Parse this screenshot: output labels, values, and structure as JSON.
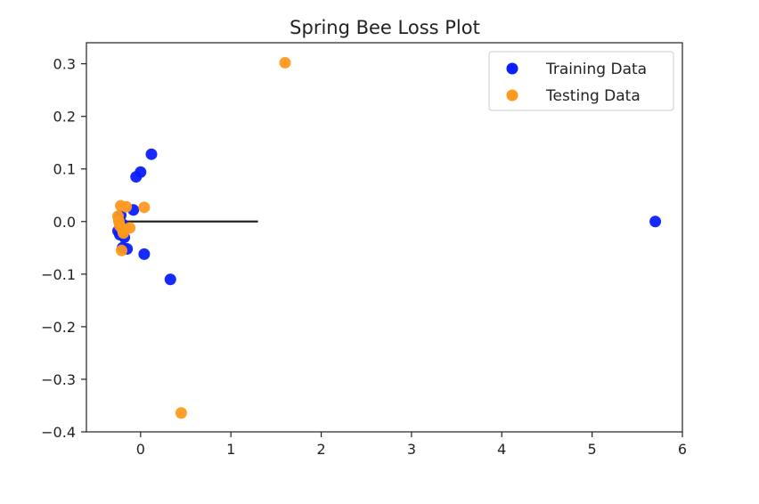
{
  "chart_data": {
    "type": "scatter",
    "title": "Spring Bee Loss Plot",
    "xlabel": "",
    "ylabel": "",
    "xlim": [
      -0.6,
      6.0
    ],
    "ylim": [
      -0.4,
      0.34
    ],
    "x_ticks": [
      0,
      1,
      2,
      3,
      4,
      5,
      6
    ],
    "x_tick_labels": [
      "0",
      "1",
      "2",
      "3",
      "4",
      "5",
      "6"
    ],
    "y_ticks": [
      0.3,
      0.2,
      0.1,
      0.0,
      -0.1,
      -0.2,
      -0.3,
      -0.4
    ],
    "y_tick_labels": [
      "0.3",
      "0.2",
      "0.1",
      "0.0",
      "−0.1",
      "−0.2",
      "−0.3",
      "−0.4"
    ],
    "grid": false,
    "legend_position": "top-right",
    "series": [
      {
        "name": "Training Data",
        "color": "#0a1fff",
        "points": [
          [
            5.7,
            0.0
          ],
          [
            0.12,
            0.128
          ],
          [
            0.0,
            0.094
          ],
          [
            -0.05,
            0.085
          ],
          [
            -0.08,
            0.022
          ],
          [
            -0.22,
            0.012
          ],
          [
            -0.24,
            0.005
          ],
          [
            -0.2,
            -0.005
          ],
          [
            -0.25,
            -0.018
          ],
          [
            -0.23,
            -0.025
          ],
          [
            -0.18,
            -0.03
          ],
          [
            -0.2,
            -0.05
          ],
          [
            -0.15,
            -0.052
          ],
          [
            0.04,
            -0.062
          ],
          [
            0.33,
            -0.11
          ]
        ]
      },
      {
        "name": "Testing Data",
        "color": "#ff9a1e",
        "points": [
          [
            1.6,
            0.302
          ],
          [
            0.45,
            -0.364
          ],
          [
            0.04,
            0.027
          ],
          [
            -0.22,
            0.03
          ],
          [
            -0.16,
            0.028
          ],
          [
            -0.25,
            0.01
          ],
          [
            -0.24,
            0.0
          ],
          [
            -0.23,
            -0.008
          ],
          [
            -0.12,
            -0.012
          ],
          [
            -0.2,
            -0.016
          ],
          [
            -0.19,
            -0.022
          ],
          [
            -0.21,
            -0.055
          ]
        ]
      }
    ],
    "reference_line": {
      "x": [
        -0.25,
        1.3
      ],
      "y": [
        0.0,
        0.0
      ],
      "color": "#222222"
    }
  }
}
